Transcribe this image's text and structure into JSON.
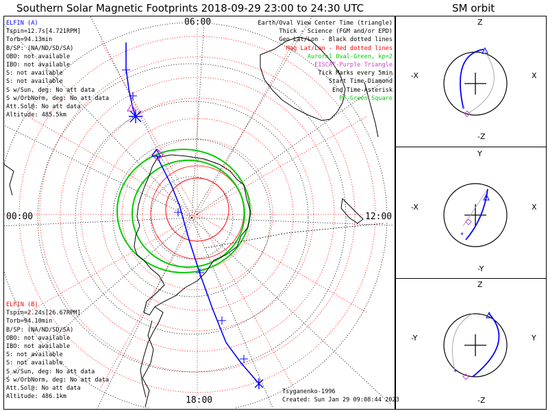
{
  "title": "Southern Solar Magnetic Footprints 2018-09-29 23:00 to 24:30 UTC",
  "sm_title": "SM orbit",
  "hours": {
    "top": "06:00",
    "left": "00:00",
    "right": "12:00",
    "bottom": "18:00"
  },
  "elfin_a": {
    "name": "ELFIN (A)",
    "lines": [
      "Tspin=12.7s[4.721RPM]",
      "Torb=94.13min",
      "B/SP: (NA/ND/SD/SA)",
      "OBO: not available",
      "IBO: not available",
      "S: not available",
      "S: not available",
      "S w/Sun, deg: No att data",
      "S w/OrbNorm, deg: No att data",
      "Att.Sol@: No att data",
      "Altitude: 485.5km"
    ]
  },
  "elfin_b": {
    "name": "ELFIN (B)",
    "lines": [
      "Tspin=2.24s[26.67RPM]",
      "Torb=94.10min",
      "B/SP: (NA/ND/SD/SA)",
      "OBO: not available",
      "IBO: not available",
      "S: not available",
      "S: not available",
      "S w/Sun, deg: No att data",
      "S w/OrbNorm, deg: No att data",
      "Att.Sol@: No att data",
      "Altitude: 486.1km"
    ]
  },
  "legend": [
    {
      "text": "Earth/Oval View Center Time (triangle)",
      "color": "#000000"
    },
    {
      "text": "Thick - Science (FGM and/or EPD)",
      "color": "#000000"
    },
    {
      "text": "Geo Lat/Lon - Black dotted lines",
      "color": "#000000"
    },
    {
      "text": "Mag Lat/Lon - Red dotted lines",
      "color": "#ff0000"
    },
    {
      "text": "Auroral Oval-Green, kp=2",
      "color": "#00cc00"
    },
    {
      "text": "EISCAT-Purple Triangle",
      "color": "#cc44cc"
    },
    {
      "text": "Tick Marks every 5min",
      "color": "#000000"
    },
    {
      "text": "Start Time-Diamond",
      "color": "#000000"
    },
    {
      "text": "End Time-Asterisk",
      "color": "#000000"
    },
    {
      "text": "PF-Green Square",
      "color": "#00cc00"
    }
  ],
  "footer": {
    "model": "Tsyganenko-1996",
    "created": "Created: Sun Jan 29 09:08:44 2023"
  },
  "sm_panels": [
    {
      "top": "Z",
      "bottom": "-Z",
      "left": "-X",
      "right": "X"
    },
    {
      "top": "Y",
      "bottom": "-Y",
      "left": "-X",
      "right": "X"
    },
    {
      "top": "Z",
      "bottom": "-Z",
      "left": "-Y",
      "right": "Y"
    }
  ],
  "colors": {
    "elfin_a": "#0000ff",
    "elfin_b": "#ff0000",
    "mag_grid": "#ff0000",
    "oval": "#00cc00",
    "eiscat": "#cc44cc"
  }
}
